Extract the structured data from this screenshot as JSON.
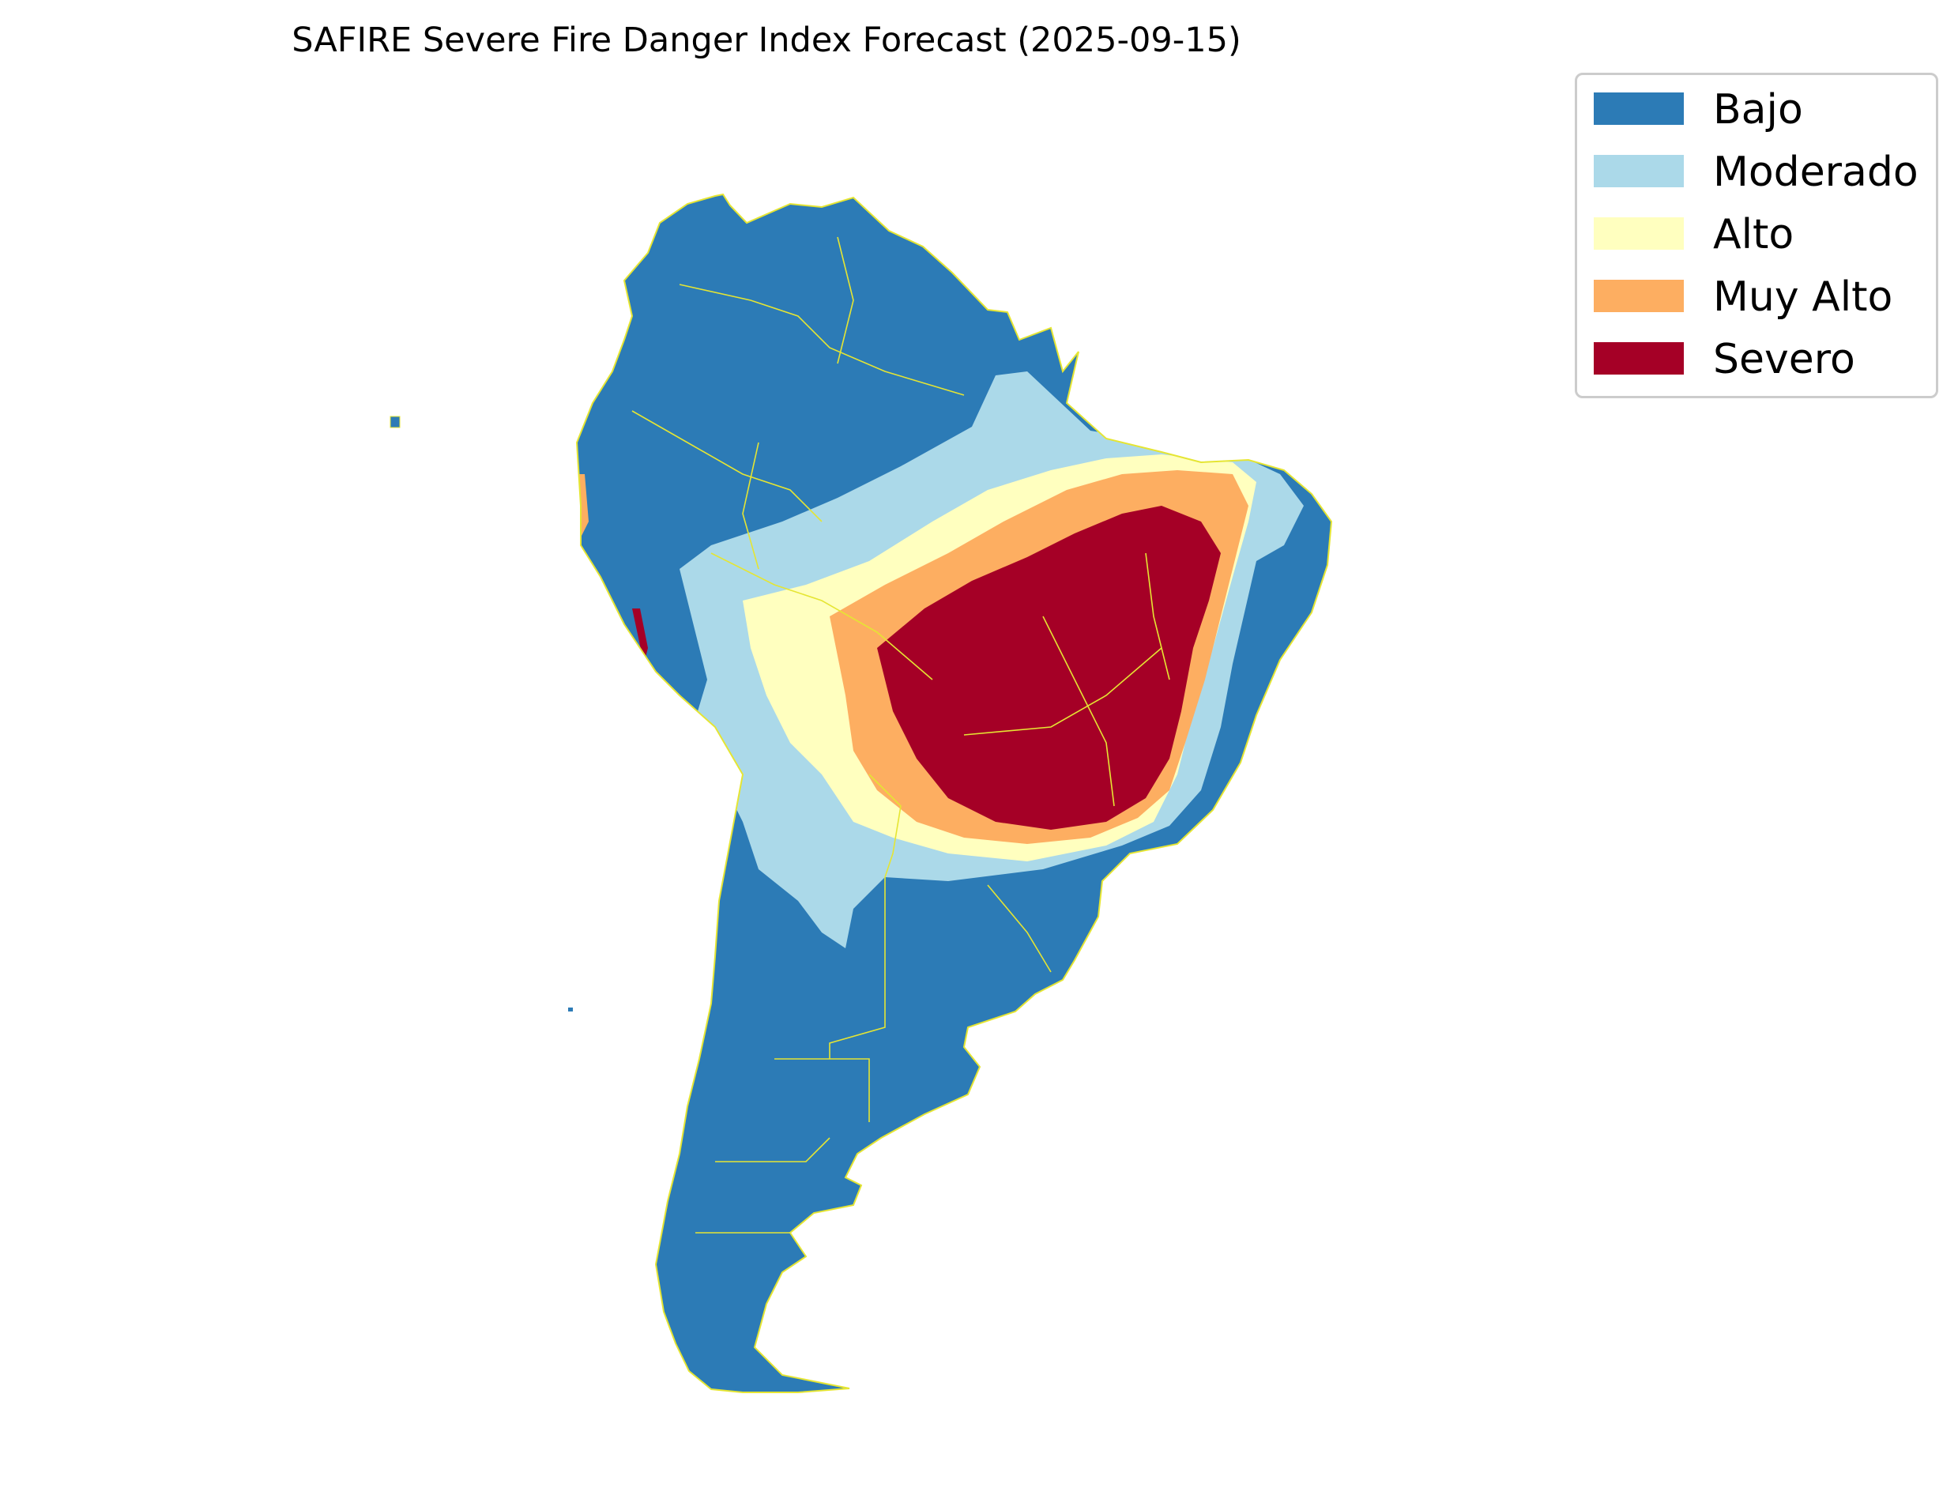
{
  "title": "SAFIRE Severe Fire Danger Index Forecast (2025-09-15)",
  "legend": {
    "placement": "top-right",
    "items": [
      {
        "label": "Bajo",
        "color": "#2c7bb6"
      },
      {
        "label": "Moderado",
        "color": "#abd9e9"
      },
      {
        "label": "Alto",
        "color": "#ffffbf"
      },
      {
        "label": "Muy Alto",
        "color": "#fdae61"
      },
      {
        "label": "Severo",
        "color": "#a50026"
      }
    ]
  },
  "map": {
    "region": "South America",
    "border_color": "#e5e533"
  }
}
